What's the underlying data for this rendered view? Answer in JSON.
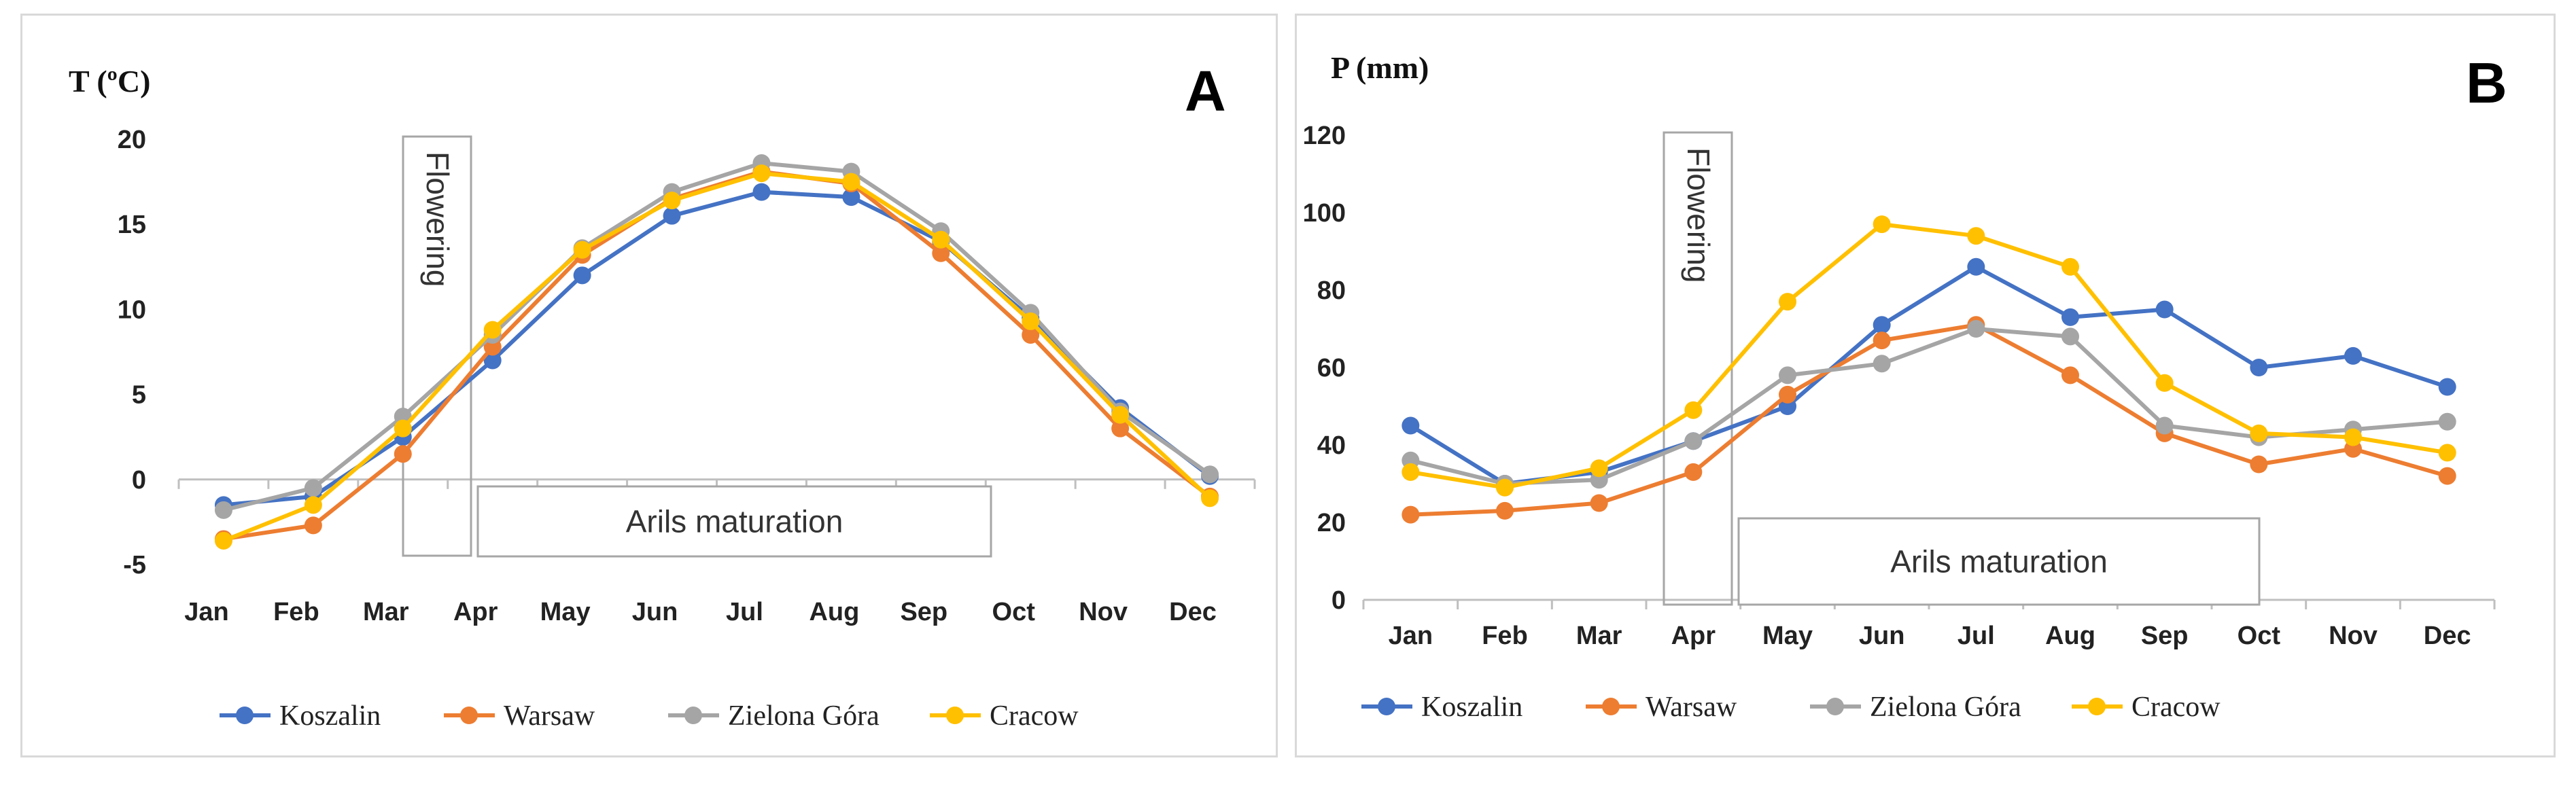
{
  "chart_data": [
    {
      "type": "line",
      "panel": "A",
      "ylabel": "T (ºC)",
      "xlabel": "",
      "title": "",
      "categories": [
        "Jan",
        "Feb",
        "Mar",
        "Apr",
        "May",
        "Jun",
        "Jul",
        "Aug",
        "Sep",
        "Oct",
        "Nov",
        "Dec"
      ],
      "ylim": [
        -5,
        20
      ],
      "yticks": [
        -5,
        0,
        5,
        10,
        15,
        20
      ],
      "yticklabels": [
        "-5",
        "0",
        "5",
        "10",
        "15",
        "20"
      ],
      "grid": false,
      "legend_position": "bottom",
      "series": [
        {
          "name": "Koszalin",
          "color": "#4472C4",
          "values": [
            -1.5,
            -1.0,
            2.5,
            7.0,
            12.0,
            15.5,
            16.9,
            16.6,
            14.0,
            9.5,
            4.2,
            0.2
          ]
        },
        {
          "name": "Warsaw",
          "color": "#ED7D31",
          "values": [
            -3.5,
            -2.7,
            1.5,
            7.8,
            13.2,
            16.5,
            18.1,
            17.4,
            13.3,
            8.5,
            3.0,
            -1.0
          ]
        },
        {
          "name": "Zielona Góra",
          "color": "#A5A5A5",
          "values": [
            -1.8,
            -0.5,
            3.7,
            8.5,
            13.6,
            16.9,
            18.6,
            18.1,
            14.6,
            9.8,
            4.0,
            0.3
          ]
        },
        {
          "name": "Cracow",
          "color": "#FFC000",
          "values": [
            -3.6,
            -1.5,
            3.0,
            8.8,
            13.5,
            16.4,
            18.0,
            17.5,
            14.1,
            9.3,
            3.8,
            -1.1
          ]
        }
      ],
      "annotations": [
        {
          "text": "Flowering",
          "orientation": "vertical",
          "span": [
            "Mar",
            "Apr"
          ]
        },
        {
          "text": "Arils maturation",
          "orientation": "horizontal",
          "span": [
            "Apr",
            "Sep"
          ]
        }
      ]
    },
    {
      "type": "line",
      "panel": "B",
      "ylabel": "P (mm)",
      "xlabel": "",
      "title": "",
      "categories": [
        "Jan",
        "Feb",
        "Mar",
        "Apr",
        "May",
        "Jun",
        "Jul",
        "Aug",
        "Sep",
        "Oct",
        "Nov",
        "Dec"
      ],
      "ylim": [
        0,
        120
      ],
      "yticks": [
        0,
        20,
        40,
        60,
        80,
        100,
        120
      ],
      "yticklabels": [
        "0",
        "20",
        "40",
        "60",
        "80",
        "100",
        "120"
      ],
      "grid": false,
      "legend_position": "bottom",
      "series": [
        {
          "name": "Koszalin",
          "color": "#4472C4",
          "values": [
            45,
            30,
            33,
            41,
            50,
            71,
            86,
            73,
            75,
            60,
            63,
            55
          ]
        },
        {
          "name": "Warsaw",
          "color": "#ED7D31",
          "values": [
            22,
            23,
            25,
            33,
            53,
            67,
            71,
            58,
            43,
            35,
            39,
            32
          ]
        },
        {
          "name": "Zielona Góra",
          "color": "#A5A5A5",
          "values": [
            36,
            30,
            31,
            41,
            58,
            61,
            70,
            68,
            45,
            42,
            44,
            46
          ]
        },
        {
          "name": "Cracow",
          "color": "#FFC000",
          "values": [
            33,
            29,
            34,
            49,
            77,
            97,
            94,
            86,
            56,
            43,
            42,
            38
          ]
        }
      ],
      "annotations": [
        {
          "text": "Flowering",
          "orientation": "vertical",
          "span": [
            "Mar",
            "Apr"
          ]
        },
        {
          "text": "Arils maturation",
          "orientation": "horizontal",
          "span": [
            "Apr",
            "Sep"
          ]
        }
      ]
    }
  ]
}
